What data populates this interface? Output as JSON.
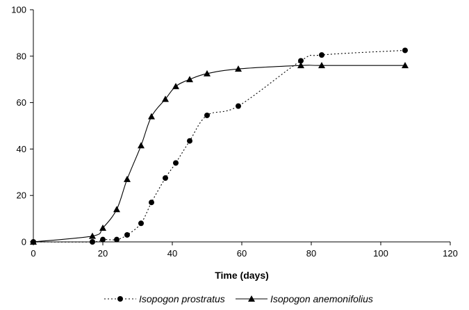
{
  "chart_data": {
    "type": "line",
    "title": "",
    "xlabel": "Time (days)",
    "ylabel": "",
    "xlim": [
      0,
      120
    ],
    "ylim": [
      0,
      100
    ],
    "xticks": [
      0,
      20,
      40,
      60,
      80,
      100,
      120
    ],
    "yticks": [
      0,
      20,
      40,
      60,
      80,
      100
    ],
    "grid": false,
    "legend_position": "bottom",
    "series": [
      {
        "name": "Isopogon prostratus",
        "marker": "circle",
        "line_style": "dotted",
        "color": "#000000",
        "x": [
          0,
          17,
          20,
          24,
          27,
          31,
          34,
          38,
          41,
          45,
          50,
          59,
          77,
          83,
          107
        ],
        "y": [
          0,
          0,
          1,
          1,
          3,
          8,
          17,
          27.5,
          34,
          43.5,
          54.5,
          58.5,
          78,
          80.5,
          82.5
        ]
      },
      {
        "name": "Isopogon anemonifolius",
        "marker": "triangle",
        "line_style": "solid",
        "color": "#000000",
        "x": [
          0,
          17,
          20,
          24,
          27,
          31,
          34,
          38,
          41,
          45,
          50,
          59,
          77,
          83,
          107
        ],
        "y": [
          0,
          2.5,
          6,
          14,
          27,
          41.5,
          54,
          61.5,
          67,
          70,
          72.5,
          74.5,
          76,
          76,
          76
        ]
      }
    ]
  }
}
